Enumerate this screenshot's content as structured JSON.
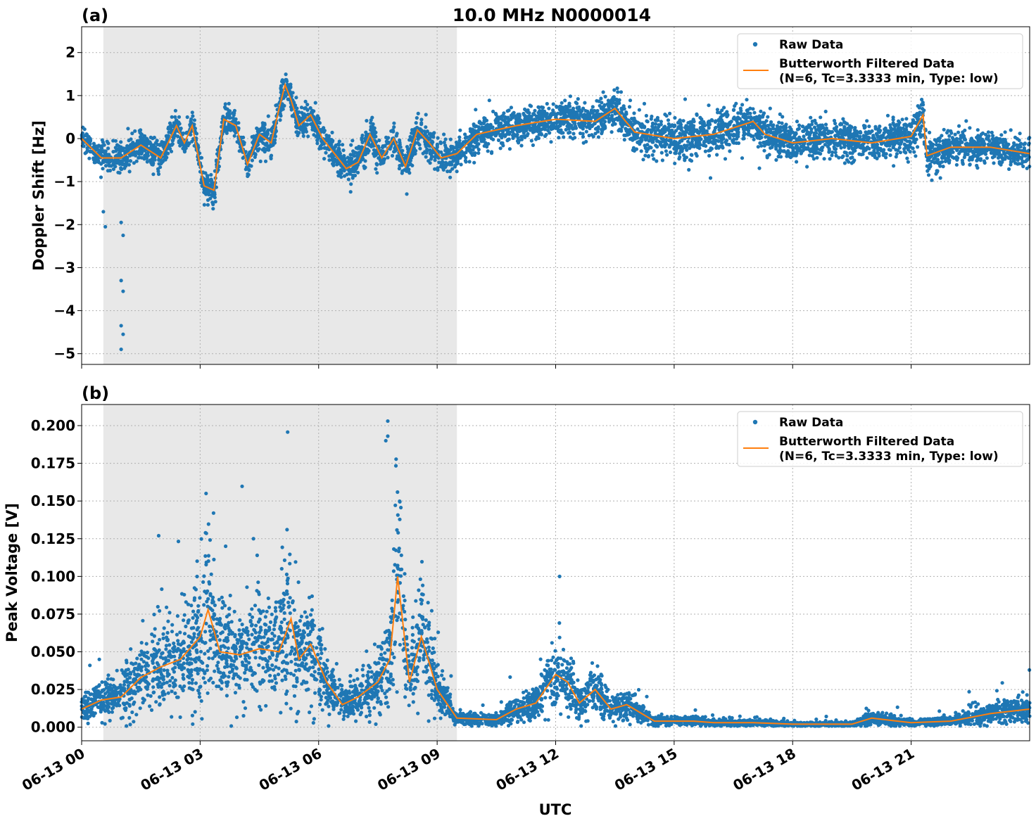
{
  "title": "10.0 MHz N0000014",
  "xlabel": "UTC",
  "x_ticks": [
    "06-13 00",
    "06-13 03",
    "06-13 06",
    "06-13 09",
    "06-13 12",
    "06-13 15",
    "06-13 18",
    "06-13 21"
  ],
  "shaded_region_hours": [
    0.55,
    9.5
  ],
  "x_range_hours": [
    0,
    24
  ],
  "colors": {
    "raw": "#1f77b4",
    "filtered": "#ff7f0e",
    "shade": "#e8e8e8"
  },
  "legend": {
    "raw": "Raw Data",
    "filtered_line1": "Butterworth Filtered Data",
    "filtered_line2": "(N=6, Tc=3.3333 min, Type: low)",
    "placement": "top-right"
  },
  "chart_data": [
    {
      "type": "scatter",
      "panel_label": "(a)",
      "ylabel": "Doppler Shift [Hz]",
      "ylim": [
        -5.25,
        2.6
      ],
      "y_ticks": [
        "−5",
        "−4",
        "−3",
        "−2",
        "−1",
        "0",
        "1",
        "2"
      ],
      "grid": true,
      "series": [
        {
          "name": "Raw Data",
          "kind": "points",
          "noise_hz": [
            [
              0,
              0.3
            ],
            [
              9.5,
              0.35
            ],
            [
              13.5,
              0.35
            ],
            [
              15,
              0.45
            ],
            [
              22,
              0.35
            ],
            [
              24,
              0.3
            ]
          ]
        },
        {
          "name": "Butterworth Filtered Data (N=6, Tc=3.3333 min, Type: low)",
          "kind": "line",
          "x": [
            0,
            0.5,
            1.0,
            1.5,
            2.0,
            2.4,
            2.6,
            2.8,
            3.1,
            3.35,
            3.6,
            3.9,
            4.2,
            4.5,
            4.8,
            5.0,
            5.15,
            5.3,
            5.5,
            5.8,
            6.1,
            6.4,
            6.7,
            7.0,
            7.3,
            7.6,
            7.9,
            8.2,
            8.5,
            8.8,
            9.1,
            9.5,
            10.0,
            11.0,
            12.0,
            13.0,
            13.5,
            14.0,
            15.0,
            16.0,
            17.0,
            17.3,
            18.0,
            19.0,
            20.0,
            21.0,
            21.3,
            21.4,
            22.0,
            23.0,
            24.0
          ],
          "y": [
            0.0,
            -0.45,
            -0.45,
            -0.15,
            -0.45,
            0.3,
            -0.1,
            0.3,
            -1.1,
            -1.2,
            0.45,
            0.3,
            -0.6,
            0.1,
            -0.1,
            0.7,
            1.25,
            0.9,
            0.3,
            0.55,
            0.0,
            -0.35,
            -0.7,
            -0.55,
            0.1,
            -0.45,
            0.0,
            -0.65,
            0.2,
            -0.1,
            -0.45,
            -0.35,
            0.1,
            0.3,
            0.45,
            0.4,
            0.7,
            0.15,
            0.0,
            0.1,
            0.4,
            0.1,
            -0.1,
            0.0,
            -0.1,
            0.05,
            0.55,
            -0.4,
            -0.2,
            -0.2,
            -0.35
          ]
        }
      ]
    },
    {
      "type": "scatter",
      "panel_label": "(b)",
      "ylabel": "Peak Voltage [V]",
      "ylim": [
        -0.009,
        0.214
      ],
      "y_ticks": [
        "0.000",
        "0.025",
        "0.050",
        "0.075",
        "0.100",
        "0.125",
        "0.150",
        "0.175",
        "0.200"
      ],
      "grid": true,
      "series": [
        {
          "name": "Raw Data",
          "kind": "points"
        },
        {
          "name": "Butterworth Filtered Data (N=6, Tc=3.3333 min, Type: low)",
          "kind": "line",
          "x": [
            0,
            0.5,
            1.0,
            1.5,
            2.0,
            2.5,
            3.0,
            3.2,
            3.5,
            4.0,
            4.5,
            5.0,
            5.3,
            5.5,
            5.8,
            6.2,
            6.6,
            7.0,
            7.5,
            7.8,
            8.0,
            8.3,
            8.6,
            9.0,
            9.5,
            10.5,
            11.0,
            11.5,
            12.0,
            12.3,
            12.6,
            13.0,
            13.4,
            13.8,
            14.5,
            15.5,
            16.0,
            17.0,
            18.0,
            19.5,
            20.0,
            21.0,
            22.0,
            23.0,
            24.0
          ],
          "y": [
            0.012,
            0.018,
            0.02,
            0.033,
            0.04,
            0.045,
            0.06,
            0.078,
            0.05,
            0.048,
            0.052,
            0.05,
            0.072,
            0.045,
            0.055,
            0.03,
            0.015,
            0.02,
            0.03,
            0.045,
            0.1,
            0.03,
            0.06,
            0.025,
            0.006,
            0.005,
            0.012,
            0.016,
            0.035,
            0.03,
            0.016,
            0.025,
            0.012,
            0.015,
            0.004,
            0.004,
            0.003,
            0.003,
            0.002,
            0.002,
            0.006,
            0.003,
            0.004,
            0.009,
            0.012
          ]
        }
      ]
    }
  ]
}
